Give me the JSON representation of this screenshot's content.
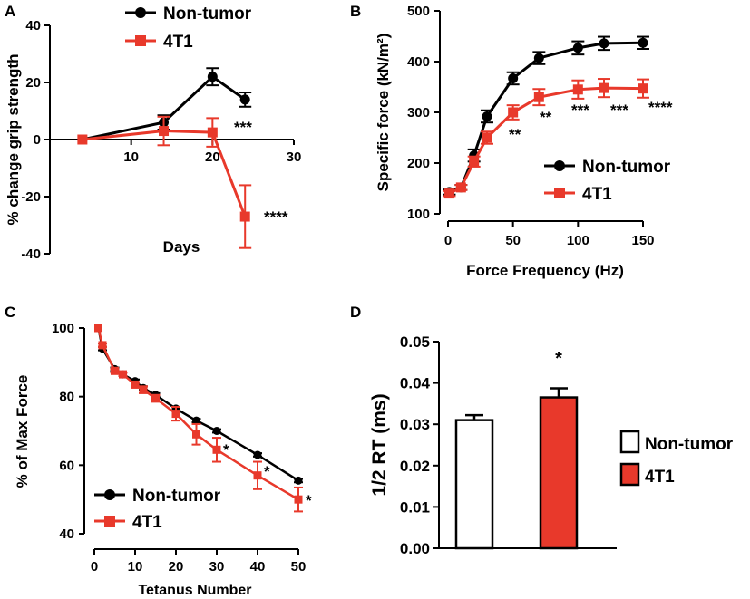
{
  "colors": {
    "non_tumor": "#000000",
    "t4t1": "#e8392b"
  },
  "chart_data": [
    {
      "panel": "A",
      "type": "line",
      "xlabel": "Days",
      "ylabel": "% change grip strength",
      "xlim": [
        0,
        30
      ],
      "ylim": [
        -40,
        40
      ],
      "xticks": [
        10,
        20,
        30
      ],
      "yticks": [
        -40,
        -20,
        0,
        20,
        40
      ],
      "legend": [
        "Non-tumor",
        "4T1"
      ],
      "series": [
        {
          "name": "Non-tumor",
          "x": [
            4,
            14,
            20,
            24
          ],
          "values": [
            0,
            6,
            22,
            14
          ],
          "err": [
            0,
            2.5,
            3,
            2.5
          ]
        },
        {
          "name": "4T1",
          "x": [
            4,
            14,
            20,
            24
          ],
          "values": [
            0,
            3,
            2.5,
            -27
          ],
          "err": [
            0,
            5,
            5,
            11
          ]
        }
      ],
      "annotations": [
        {
          "x": 24,
          "label": "***"
        },
        {
          "x": 24,
          "label": "****"
        }
      ]
    },
    {
      "panel": "B",
      "type": "line",
      "xlabel": "Force Frequency (Hz)",
      "ylabel": "Specific force (kN/m²)",
      "xlim": [
        0,
        150
      ],
      "ylim": [
        100,
        500
      ],
      "xticks": [
        0,
        50,
        100,
        150
      ],
      "yticks": [
        100,
        200,
        300,
        400,
        500
      ],
      "legend": [
        "Non-tumor",
        "4T1"
      ],
      "series": [
        {
          "name": "Non-tumor",
          "x": [
            1,
            10,
            20,
            30,
            50,
            70,
            100,
            120,
            150
          ],
          "values": [
            143,
            152,
            215,
            292,
            367,
            407,
            427,
            436,
            437
          ],
          "err": [
            5,
            5,
            12,
            12,
            12,
            12,
            13,
            13,
            12
          ]
        },
        {
          "name": "4T1",
          "x": [
            1,
            10,
            20,
            30,
            50,
            70,
            100,
            120,
            150
          ],
          "values": [
            140,
            152,
            203,
            250,
            300,
            330,
            345,
            348,
            347
          ],
          "err": [
            5,
            5,
            10,
            12,
            14,
            16,
            18,
            18,
            18
          ]
        }
      ],
      "annotations": [
        {
          "x": 50,
          "label": "**"
        },
        {
          "x": 70,
          "label": "**"
        },
        {
          "x": 100,
          "label": "***"
        },
        {
          "x": 120,
          "label": "***"
        },
        {
          "x": 150,
          "label": "****"
        }
      ]
    },
    {
      "panel": "C",
      "type": "line",
      "xlabel": "Tetanus Number",
      "ylabel": "% of Max Force",
      "xlim": [
        0,
        50
      ],
      "ylim": [
        40,
        100
      ],
      "xticks": [
        0,
        10,
        20,
        30,
        40,
        50
      ],
      "yticks": [
        40,
        60,
        80,
        100
      ],
      "legend": [
        "Non-tumor",
        "4T1"
      ],
      "series": [
        {
          "name": "Non-tumor",
          "x": [
            1,
            2,
            5,
            7,
            10,
            12,
            15,
            20,
            25,
            30,
            40,
            50
          ],
          "values": [
            100,
            94,
            88,
            86.5,
            84.5,
            82.5,
            80.5,
            76.5,
            73,
            70,
            63,
            55.5
          ],
          "err": [
            0,
            0.5,
            0.5,
            0.5,
            0.5,
            0.5,
            0.5,
            0.5,
            0.5,
            0.5,
            0.5,
            0.5
          ]
        },
        {
          "name": "4T1",
          "x": [
            1,
            2,
            5,
            7,
            10,
            12,
            15,
            20,
            25,
            30,
            40,
            50
          ],
          "values": [
            100,
            95,
            87.5,
            86.5,
            83.5,
            82,
            79.5,
            75,
            69,
            64.5,
            57,
            50
          ],
          "err": [
            0,
            0.5,
            0.5,
            0.5,
            0.5,
            1,
            1,
            2,
            3,
            3.5,
            4,
            3.5
          ]
        }
      ],
      "annotations": [
        {
          "x": 30,
          "label": "*"
        },
        {
          "x": 40,
          "label": "*"
        },
        {
          "x": 50,
          "label": "*"
        }
      ]
    },
    {
      "panel": "D",
      "type": "bar",
      "ylabel": "1/2 RT (ms)",
      "ylim": [
        0,
        0.05
      ],
      "yticks": [
        "0.00",
        "0.01",
        "0.02",
        "0.03",
        "0.04",
        "0.05"
      ],
      "categories": [
        "Non-tumor",
        "4T1"
      ],
      "values": [
        0.031,
        0.0365
      ],
      "err": [
        0.0012,
        0.0022
      ],
      "legend": [
        "Non-tumor",
        "4T1"
      ],
      "annotations": [
        {
          "category": "4T1",
          "label": "*"
        }
      ]
    }
  ]
}
